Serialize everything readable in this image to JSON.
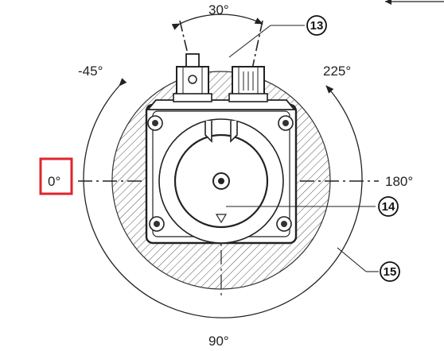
{
  "angles": {
    "top": "30°",
    "upper_left": "-45°",
    "upper_right": "225°",
    "left": "0°",
    "right": "180°",
    "bottom": "90°"
  },
  "callouts": {
    "connectors": "13",
    "arrow_marker": "14",
    "rotation_zone": "15"
  },
  "highlight": {
    "target": "left",
    "color": "#e0242c"
  }
}
